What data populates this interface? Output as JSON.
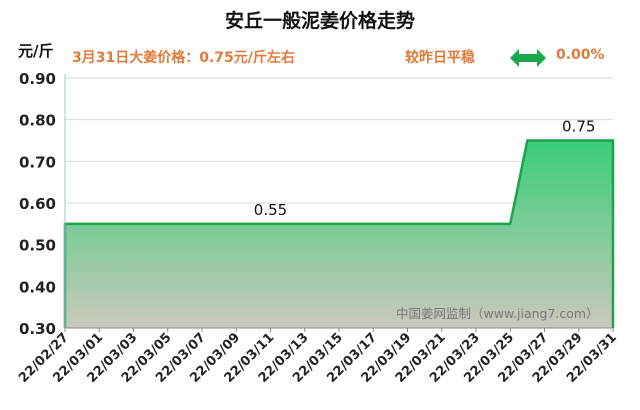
{
  "header": {
    "title": "安丘一般泥姜价格走势",
    "unit": "元/斤",
    "subtitle": "3月31日大姜价格：0.75元/斤左右",
    "trend_text": "较昨日平稳",
    "change_pct": "0.00%",
    "trend_icon": "double-arrow-icon",
    "trend_color": "#1aa64a"
  },
  "chart_data": {
    "type": "area",
    "x": [
      "22/02/27",
      "22/02/28",
      "22/03/01",
      "22/03/02",
      "22/03/03",
      "22/03/04",
      "22/03/05",
      "22/03/06",
      "22/03/07",
      "22/03/08",
      "22/03/09",
      "22/03/10",
      "22/03/11",
      "22/03/12",
      "22/03/13",
      "22/03/14",
      "22/03/15",
      "22/03/16",
      "22/03/17",
      "22/03/18",
      "22/03/19",
      "22/03/20",
      "22/03/21",
      "22/03/22",
      "22/03/23",
      "22/03/24",
      "22/03/25",
      "22/03/26",
      "22/03/27",
      "22/03/28",
      "22/03/29",
      "22/03/30",
      "22/03/31"
    ],
    "tick_labels": [
      "22/02/27",
      "22/03/01",
      "22/03/03",
      "22/03/05",
      "22/03/07",
      "22/03/09",
      "22/03/11",
      "22/03/13",
      "22/03/15",
      "22/03/17",
      "22/03/19",
      "22/03/21",
      "22/03/23",
      "22/03/25",
      "22/03/27",
      "22/03/29",
      "22/03/31"
    ],
    "values": [
      0.55,
      0.55,
      0.55,
      0.55,
      0.55,
      0.55,
      0.55,
      0.55,
      0.55,
      0.55,
      0.55,
      0.55,
      0.55,
      0.55,
      0.55,
      0.55,
      0.55,
      0.55,
      0.55,
      0.55,
      0.55,
      0.55,
      0.55,
      0.55,
      0.55,
      0.55,
      0.55,
      0.75,
      0.75,
      0.75,
      0.75,
      0.75,
      0.75
    ],
    "ylim": [
      0.3,
      0.9
    ],
    "yticks": [
      "0.30",
      "0.40",
      "0.50",
      "0.60",
      "0.70",
      "0.80",
      "0.90"
    ],
    "annotations": [
      {
        "x": "22/03/11",
        "text": "0.55"
      },
      {
        "x": "22/03/29",
        "text": "0.75"
      }
    ],
    "watermark": "中国姜网监制（www.jiang7.com）",
    "line_color": "#1fa34a",
    "fill_top_color": "#2ecc71",
    "fill_bottom_color": "#c8c6b8",
    "grid": true,
    "xlabel": "",
    "ylabel": ""
  }
}
